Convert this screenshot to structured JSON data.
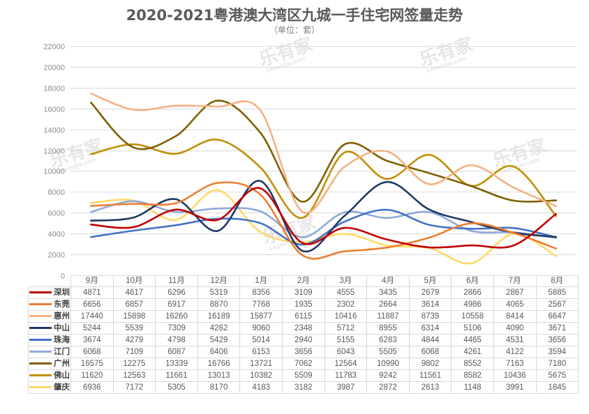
{
  "chart_data": {
    "type": "line",
    "title": "2020-2021粤港澳大湾区九城一手住宅网签量走势",
    "subtitle": "（单位：套）",
    "xlabel": "",
    "ylabel": "",
    "ylim": [
      0,
      22000
    ],
    "yticks": [
      0,
      2000,
      4000,
      6000,
      8000,
      10000,
      12000,
      14000,
      16000,
      18000,
      20000,
      22000
    ],
    "grid": true,
    "legend": "data-table-below",
    "categories": [
      "9月",
      "10月",
      "11月",
      "12月",
      "1月",
      "2月",
      "3月",
      "4月",
      "5月",
      "6月",
      "7月",
      "8月"
    ],
    "series": [
      {
        "name": "深圳",
        "color": "#c00000",
        "values": [
          4871,
          4617,
          6296,
          5319,
          8356,
          3109,
          4555,
          3435,
          2679,
          2866,
          2867,
          5885
        ]
      },
      {
        "name": "东莞",
        "color": "#ed7d31",
        "values": [
          6656,
          6857,
          6917,
          8870,
          7768,
          1935,
          2302,
          2664,
          3614,
          4986,
          4065,
          2567
        ]
      },
      {
        "name": "惠州",
        "color": "#f4b183",
        "values": [
          17440,
          15898,
          16260,
          16189,
          15877,
          6115,
          10416,
          11887,
          8739,
          10558,
          8414,
          6647
        ]
      },
      {
        "name": "中山",
        "color": "#203864",
        "values": [
          5244,
          5539,
          7309,
          4262,
          9060,
          2348,
          5712,
          8955,
          6314,
          5106,
          4090,
          3671
        ]
      },
      {
        "name": "珠海",
        "color": "#4472c4",
        "values": [
          3674,
          4279,
          4798,
          5429,
          5014,
          2940,
          5155,
          6283,
          4844,
          4465,
          4531,
          3656
        ]
      },
      {
        "name": "江门",
        "color": "#8faadc",
        "values": [
          6068,
          7109,
          6087,
          6406,
          6153,
          3656,
          6043,
          5505,
          6068,
          4261,
          4122,
          3594
        ]
      },
      {
        "name": "广州",
        "color": "#7f6000",
        "values": [
          16575,
          12275,
          13339,
          16766,
          13721,
          7062,
          12564,
          10990,
          9802,
          8552,
          7163,
          7180
        ]
      },
      {
        "name": "佛山",
        "color": "#bf9000",
        "values": [
          11620,
          12563,
          11661,
          13013,
          10382,
          5509,
          11783,
          9242,
          11561,
          8582,
          10436,
          5675
        ]
      },
      {
        "name": "肇庆",
        "color": "#ffd966",
        "values": [
          6936,
          7172,
          5305,
          8170,
          4183,
          3182,
          3987,
          2872,
          2613,
          1148,
          3991,
          1845
        ]
      }
    ]
  },
  "watermark": {
    "text": "乐有家",
    "subtext": "Leyoujia.com"
  }
}
